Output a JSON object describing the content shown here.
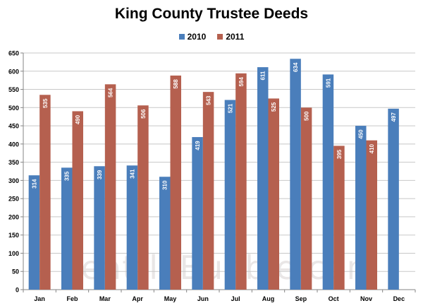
{
  "colors": {
    "s2010": "#4A7EBB",
    "s2011": "#B5604F",
    "grid": "#c8c8c8",
    "axis": "#868686",
    "watermark": "#e9e6e6"
  },
  "watermark": "SeattleBubble.com",
  "chart_data": {
    "type": "bar",
    "title": "King County Trustee Deeds",
    "categories": [
      "Jan",
      "Feb",
      "Mar",
      "Apr",
      "May",
      "Jun",
      "Jul",
      "Aug",
      "Sep",
      "Oct",
      "Nov",
      "Dec"
    ],
    "series": [
      {
        "name": "2010",
        "values": [
          314,
          335,
          339,
          341,
          310,
          419,
          521,
          611,
          634,
          591,
          450,
          497
        ]
      },
      {
        "name": "2011",
        "values": [
          535,
          490,
          564,
          506,
          588,
          543,
          594,
          525,
          500,
          395,
          410,
          null
        ]
      }
    ],
    "ylim": [
      0,
      650
    ],
    "yticks": [
      0,
      50,
      100,
      150,
      200,
      250,
      300,
      350,
      400,
      450,
      500,
      550,
      600,
      650
    ],
    "grid": true,
    "legend": "top-center",
    "data_labels": "inside-end-rotated"
  }
}
